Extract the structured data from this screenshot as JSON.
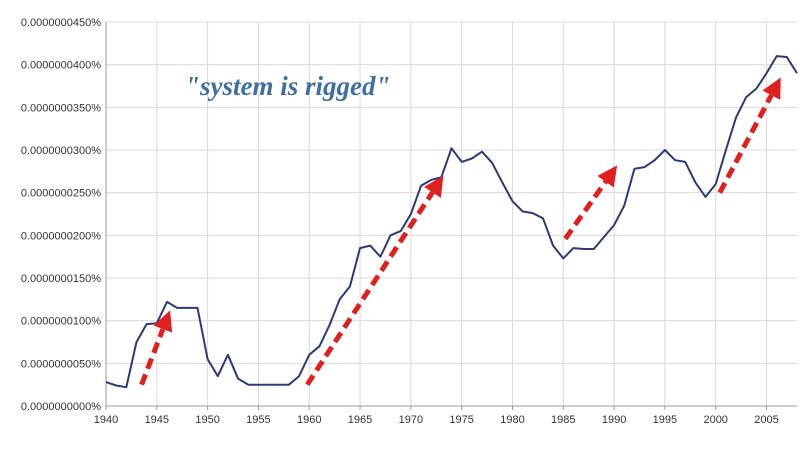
{
  "chart_data": {
    "type": "line",
    "annotation": "\"system is rigged\"",
    "x": [
      1940,
      1941,
      1942,
      1943,
      1944,
      1945,
      1946,
      1947,
      1948,
      1949,
      1950,
      1951,
      1952,
      1953,
      1954,
      1955,
      1956,
      1957,
      1958,
      1959,
      1960,
      1961,
      1962,
      1963,
      1964,
      1965,
      1966,
      1967,
      1968,
      1969,
      1970,
      1971,
      1972,
      1973,
      1974,
      1975,
      1976,
      1977,
      1978,
      1979,
      1980,
      1981,
      1982,
      1983,
      1984,
      1985,
      1986,
      1987,
      1988,
      1989,
      1990,
      1991,
      1992,
      1993,
      1994,
      1995,
      1996,
      1997,
      1998,
      1999,
      2000,
      2001,
      2002,
      2003,
      2004,
      2005,
      2006,
      2007,
      2008
    ],
    "series": [
      {
        "values": [
          2.8e-08,
          2.4e-08,
          2.2e-08,
          7.5e-08,
          9.6e-08,
          9.7e-08,
          1.22e-07,
          1.15e-07,
          1.15e-07,
          1.15e-07,
          5.5e-08,
          3.5e-08,
          6e-08,
          3.2e-08,
          2.5e-08,
          2.5e-08,
          2.5e-08,
          2.5e-08,
          2.5e-08,
          3.5e-08,
          6e-08,
          7e-08,
          9.5e-08,
          1.25e-07,
          1.4e-07,
          1.85e-07,
          1.88e-07,
          1.75e-07,
          2e-07,
          2.05e-07,
          2.25e-07,
          2.58e-07,
          2.65e-07,
          2.68e-07,
          3.02e-07,
          2.86e-07,
          2.9e-07,
          2.98e-07,
          2.85e-07,
          2.62e-07,
          2.4e-07,
          2.28e-07,
          2.26e-07,
          2.2e-07,
          1.88e-07,
          1.73e-07,
          1.85e-07,
          1.84e-07,
          1.84e-07,
          1.98e-07,
          2.12e-07,
          2.35e-07,
          2.78e-07,
          2.8e-07,
          2.88e-07,
          3e-07,
          2.88e-07,
          2.86e-07,
          2.62e-07,
          2.45e-07,
          2.6e-07,
          3e-07,
          3.38e-07,
          3.62e-07,
          3.72e-07,
          3.9e-07,
          4.1e-07,
          4.09e-07,
          3.9e-07
        ]
      }
    ],
    "ylim": [
      0,
      4.5e-07
    ],
    "xlim": [
      1940,
      2008
    ],
    "y_ticks": [
      0,
      5e-08,
      1e-07,
      1.5e-07,
      2e-07,
      2.5e-07,
      3e-07,
      3.5e-07,
      4e-07,
      4.5e-07
    ],
    "y_tick_labels": [
      "0.0000000000%",
      "0.0000000050%",
      "0.0000000100%",
      "0.0000000150%",
      "0.0000000200%",
      "0.0000000250%",
      "0.0000000300%",
      "0.0000000350%",
      "0.0000000400%",
      "0.0000000450%"
    ],
    "x_ticks": [
      1940,
      1945,
      1950,
      1955,
      1960,
      1965,
      1970,
      1975,
      1980,
      1985,
      1990,
      1995,
      2000,
      2005
    ],
    "x_tick_labels": [
      "1940",
      "1945",
      "1950",
      "1955",
      "1960",
      "1965",
      "1970",
      "1975",
      "1980",
      "1985",
      "1990",
      "1995",
      "2000",
      "2005"
    ],
    "arrows": [
      {
        "from": [
          1943.5,
          2.5e-08
        ],
        "to": [
          1946.3,
          1.12e-07
        ]
      },
      {
        "from": [
          1959.8,
          2.5e-08
        ],
        "to": [
          1973.2,
          2.7e-07
        ]
      },
      {
        "from": [
          1985.2,
          1.96e-07
        ],
        "to": [
          1990.3,
          2.82e-07
        ]
      },
      {
        "from": [
          2000.4,
          2.5e-07
        ],
        "to": [
          2006.4,
          3.85e-07
        ]
      }
    ],
    "grid": true,
    "colors": {
      "line": "#2b3a78",
      "arrow": "#e01f1f",
      "grid": "#d9d9d9",
      "axis": "#9a9a9a",
      "annotation": "#3f6ea3"
    }
  }
}
